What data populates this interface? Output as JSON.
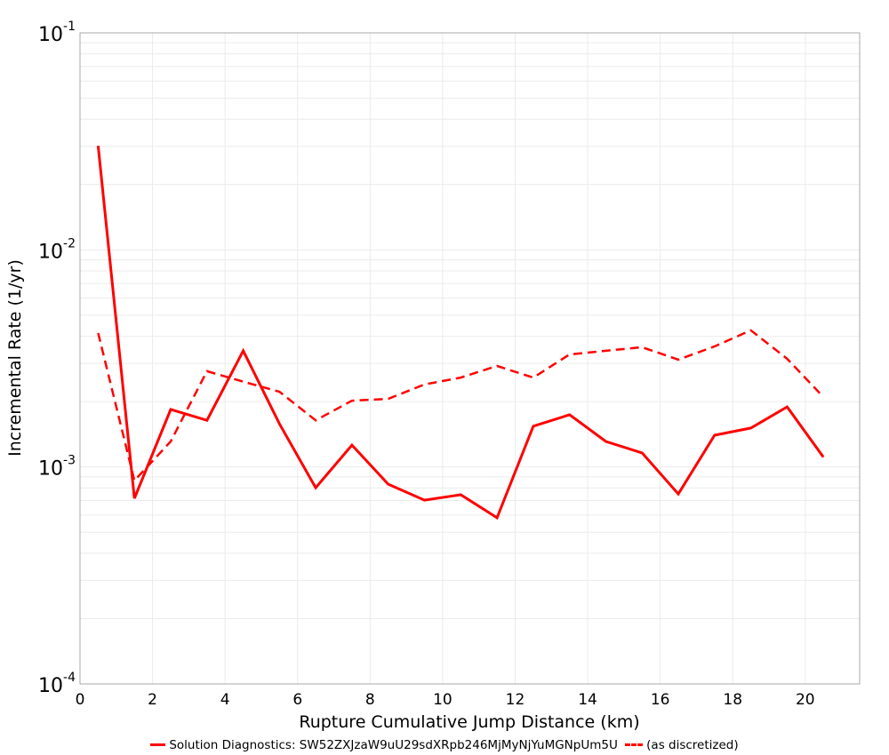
{
  "chart_data": {
    "type": "line",
    "title": "",
    "xlabel": "Rupture Cumulative Jump Distance (km)",
    "ylabel": "Incremental Rate (1/yr)",
    "xlim": [
      0,
      21.5
    ],
    "ylim": [
      0.0001,
      0.1
    ],
    "yscale": "log",
    "grid": true,
    "legend_position": "bottom",
    "x_ticks": [
      0,
      2,
      4,
      6,
      8,
      10,
      12,
      14,
      16,
      18,
      20
    ],
    "y_ticks": [
      {
        "value": 0.1,
        "base": "10",
        "exp": "-1"
      },
      {
        "value": 0.01,
        "base": "10",
        "exp": "-2"
      },
      {
        "value": 0.001,
        "base": "10",
        "exp": "-3"
      },
      {
        "value": 0.0001,
        "base": "10",
        "exp": "-4"
      }
    ],
    "x": [
      0.5,
      1.5,
      2.5,
      3.5,
      4.5,
      5.5,
      6.5,
      7.5,
      8.5,
      9.5,
      10.5,
      11.5,
      12.5,
      13.5,
      14.5,
      15.5,
      16.5,
      17.5,
      18.5,
      19.5,
      20.5
    ],
    "series": [
      {
        "name": "Solution Diagnostics: SW52ZXJzaW9uU29sdXRpb246MjMyNjYuMGNpUm5U",
        "style": "solid",
        "color": "#ff0000",
        "values": [
          0.0302,
          0.000716,
          0.00184,
          0.00164,
          0.00343,
          0.00158,
          0.000802,
          0.00126,
          0.000833,
          0.000703,
          0.000744,
          0.000583,
          0.00154,
          0.00174,
          0.00131,
          0.00116,
          0.000751,
          0.0014,
          0.00151,
          0.00189,
          0.00111
        ]
      },
      {
        "name": "(as discretized)",
        "style": "dashed",
        "color": "#ff0000",
        "values": [
          0.00414,
          0.000865,
          0.00131,
          0.00276,
          0.00247,
          0.00222,
          0.00164,
          0.00202,
          0.00206,
          0.0024,
          0.00258,
          0.00292,
          0.00258,
          0.0033,
          0.00343,
          0.00356,
          0.00312,
          0.00359,
          0.00426,
          0.00315,
          0.0021
        ]
      }
    ]
  },
  "legend": {
    "items": [
      {
        "label": "Solution Diagnostics: SW52ZXJzaW9uU29sdXRpb246MjMyNjYuMGNpUm5U"
      },
      {
        "label": "(as discretized)"
      }
    ]
  },
  "colors": {
    "series": "#ff0000",
    "grid": "#ebebeb",
    "axis": "#a8a8a8"
  }
}
